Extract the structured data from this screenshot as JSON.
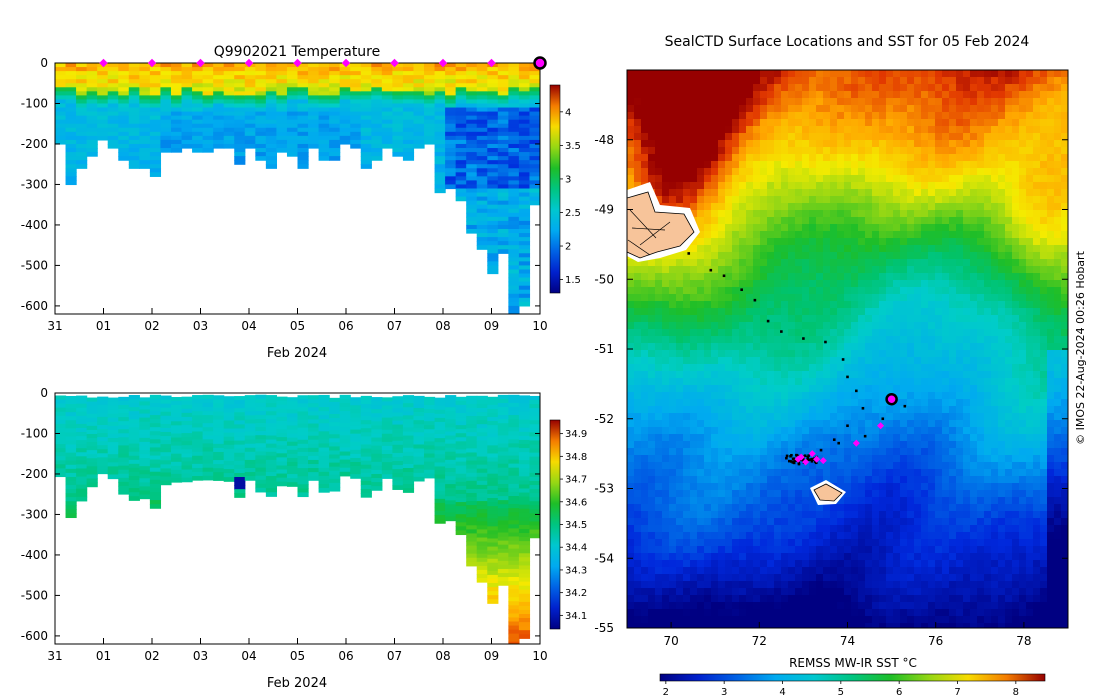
{
  "chart_data": [
    {
      "type": "heatmap",
      "title": "Q9902021  Temperature",
      "xlabel": "Feb 2024",
      "ylabel": "",
      "x_tick_labels": [
        "31",
        "01",
        "02",
        "03",
        "04",
        "05",
        "06",
        "07",
        "08",
        "09",
        "10"
      ],
      "y_tick_labels": [
        "0",
        "-100",
        "-200",
        "-300",
        "-400",
        "-500",
        "-600"
      ],
      "ylim": [
        -620,
        0
      ],
      "colorbar": {
        "ticks": [
          "1.5",
          "2",
          "2.5",
          "3",
          "3.5",
          "4"
        ],
        "range": [
          1.3,
          4.4
        ]
      },
      "surface_markers_days": [
        1,
        2,
        3,
        4,
        5,
        6,
        7,
        8,
        9
      ],
      "current_marker_day": 10,
      "profile_depths_m": [
        200,
        300,
        260,
        230,
        190,
        210,
        240,
        255,
        260,
        275,
        220,
        215,
        210,
        212,
        213,
        210,
        210,
        250,
        210,
        240,
        255,
        220,
        230,
        255,
        210,
        238,
        240,
        200,
        210,
        255,
        240,
        210,
        230,
        240,
        210,
        200,
        320,
        310,
        340,
        420,
        460,
        515,
        470,
        620,
        600,
        350
      ]
    },
    {
      "type": "heatmap",
      "title": "",
      "xlabel": "Feb 2024",
      "ylabel": "",
      "x_tick_labels": [
        "31",
        "01",
        "02",
        "03",
        "04",
        "05",
        "06",
        "07",
        "08",
        "09",
        "10"
      ],
      "y_tick_labels": [
        "0",
        "-100",
        "-200",
        "-300",
        "-400",
        "-500",
        "-600"
      ],
      "ylim": [
        -620,
        0
      ],
      "colorbar": {
        "ticks": [
          "34.1",
          "34.2",
          "34.3",
          "34.4",
          "34.5",
          "34.6",
          "34.7",
          "34.8",
          "34.9"
        ],
        "range": [
          34.04,
          34.96
        ]
      }
    },
    {
      "type": "heatmap",
      "title": "SealCTD Surface Locations and SST for 05 Feb 2024",
      "xlabel": "",
      "ylabel": "",
      "x_tick_labels": [
        "70",
        "72",
        "74",
        "76",
        "78"
      ],
      "y_tick_labels": [
        "-48",
        "-49",
        "-50",
        "-51",
        "-52",
        "-53",
        "-54",
        "-55"
      ],
      "xlim": [
        69,
        79
      ],
      "ylim": [
        -55,
        -47
      ],
      "colorbar": {
        "label": "REMSS MW-IR SST °C",
        "ticks": [
          "2",
          "3",
          "4",
          "5",
          "6",
          "7",
          "8"
        ],
        "range": [
          1.9,
          8.5
        ]
      },
      "current_position": {
        "lon": 75.0,
        "lat": -51.72
      },
      "track_points": [
        [
          70.4,
          -49.63
        ],
        [
          70.9,
          -49.87
        ],
        [
          71.2,
          -49.95
        ],
        [
          71.6,
          -50.15
        ],
        [
          71.9,
          -50.3
        ],
        [
          72.2,
          -50.6
        ],
        [
          72.5,
          -50.75
        ],
        [
          73.0,
          -50.85
        ],
        [
          73.5,
          -50.9
        ],
        [
          73.9,
          -51.15
        ],
        [
          74.0,
          -51.4
        ],
        [
          74.2,
          -51.6
        ],
        [
          74.35,
          -51.85
        ],
        [
          74.0,
          -52.1
        ],
        [
          73.7,
          -52.3
        ],
        [
          73.4,
          -52.45
        ],
        [
          73.1,
          -52.55
        ],
        [
          72.8,
          -52.6
        ],
        [
          72.9,
          -52.65
        ],
        [
          73.3,
          -52.55
        ],
        [
          73.8,
          -52.35
        ],
        [
          74.4,
          -52.25
        ],
        [
          74.8,
          -52.0
        ],
        [
          75.3,
          -51.82
        ]
      ],
      "daily_points": [
        [
          72.95,
          -52.55
        ],
        [
          73.2,
          -52.5
        ],
        [
          73.45,
          -52.6
        ],
        [
          74.2,
          -52.35
        ],
        [
          74.75,
          -52.1
        ],
        [
          73.05,
          -52.62
        ],
        [
          72.88,
          -52.58
        ],
        [
          73.3,
          -52.58
        ]
      ]
    }
  ],
  "watermark": "© IMOS 22-Aug-2024 00:26 Hobart"
}
